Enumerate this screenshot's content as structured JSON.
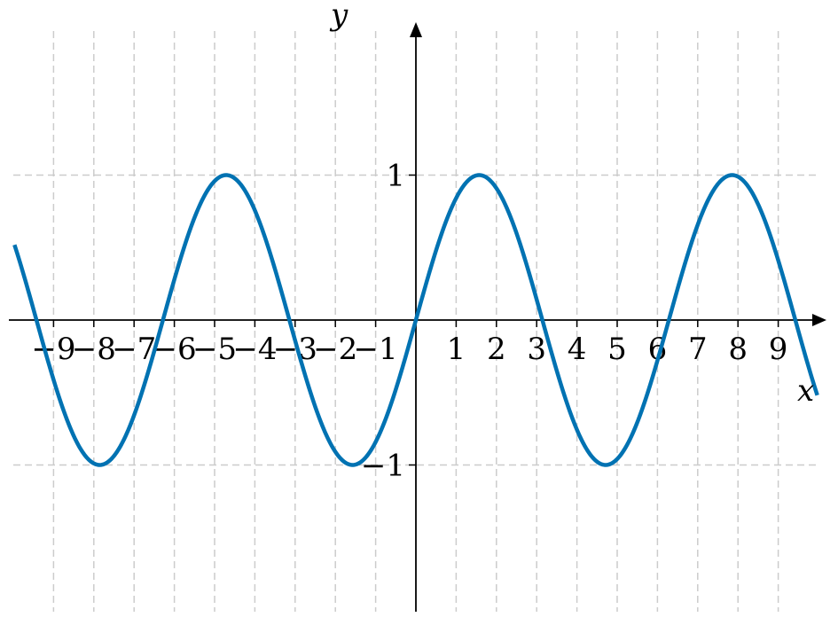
{
  "chart_data": {
    "type": "line",
    "title": "",
    "xlabel": "x",
    "ylabel": "y",
    "function": "sin(x)",
    "xlim": [
      -9.97,
      9.97
    ],
    "ylim": [
      -2,
      2
    ],
    "x_ticks": [
      -9,
      -8,
      -7,
      -6,
      -5,
      -4,
      -3,
      -2,
      -1,
      1,
      2,
      3,
      4,
      5,
      6,
      7,
      8,
      9
    ],
    "x_tick_labels": [
      "−9",
      "−8",
      "−7",
      "−6",
      "−5",
      "−4",
      "−3",
      "−2",
      "−1",
      "1",
      "2",
      "3",
      "4",
      "5",
      "6",
      "7",
      "8",
      "9"
    ],
    "y_ticks": [
      -1,
      1
    ],
    "y_tick_labels": [
      "−1",
      "1"
    ],
    "grid": true,
    "series": [
      {
        "color": "#0072b2"
      }
    ]
  }
}
